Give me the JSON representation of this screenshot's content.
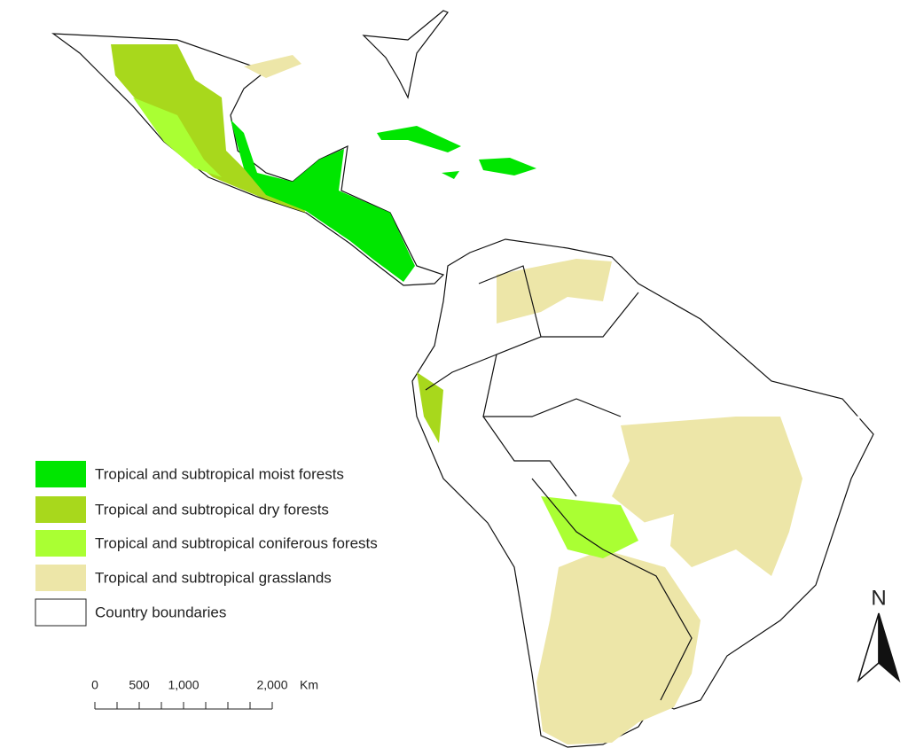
{
  "legend": {
    "items": [
      {
        "label": "Tropical and subtropical moist forests",
        "color": "#00e600"
      },
      {
        "label": "Tropical and subtropical dry forests",
        "color": "#a8d81c"
      },
      {
        "label": "Tropical and subtropical coniferous forests",
        "color": "#aaff33"
      },
      {
        "label": "Tropical and subtropical grasslands",
        "color": "#ede6a8"
      },
      {
        "label": "Country boundaries",
        "color": "#ffffff"
      }
    ]
  },
  "scale_bar": {
    "labels": [
      "0",
      "500",
      "1,000",
      "2,000"
    ],
    "unit": "Km"
  },
  "north_arrow": {
    "label": "N"
  }
}
